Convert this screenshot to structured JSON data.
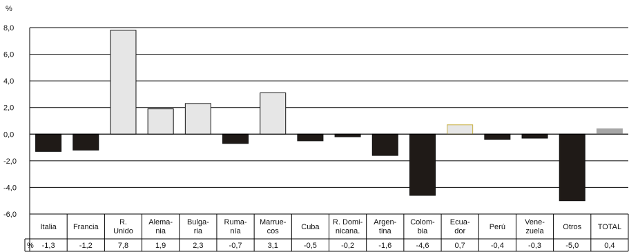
{
  "chart_data": {
    "type": "bar",
    "y_unit": "%",
    "ylim": [
      -6,
      8
    ],
    "yticks": [
      "8,0",
      "6,0",
      "4,0",
      "2,0",
      "0,0",
      "-2,0",
      "-4,0",
      "-6,0"
    ],
    "grid": true,
    "legend": "none",
    "categories": [
      [
        "Italia"
      ],
      [
        "Francia"
      ],
      [
        "R.",
        "Unido"
      ],
      [
        "Alema-",
        "nia"
      ],
      [
        "Bulga-",
        "ria"
      ],
      [
        "Ruma-",
        "nía"
      ],
      [
        "Marrue-",
        "cos"
      ],
      [
        "Cuba"
      ],
      [
        "R. Domi-",
        "nicana."
      ],
      [
        "Argen-",
        "tina"
      ],
      [
        "Colom-",
        "bia"
      ],
      [
        "Ecua-",
        "dor"
      ],
      [
        "Perú"
      ],
      [
        "Vene-",
        "zuela"
      ],
      [
        "Otros"
      ],
      [
        "TOTAL"
      ]
    ],
    "values": [
      -1.3,
      -1.2,
      7.8,
      1.9,
      2.3,
      -0.7,
      3.1,
      -0.5,
      -0.2,
      -1.6,
      -4.6,
      0.7,
      -0.4,
      -0.3,
      -5.0,
      0.4
    ],
    "table_row_label": "%",
    "value_labels": [
      "-1,3",
      "-1,2",
      "7,8",
      "1,9",
      "2,3",
      "-0,7",
      "3,1",
      "-0,5",
      "-0,2",
      "-1,6",
      "-4,6",
      "0,7",
      "-0,4",
      "-0,3",
      "-5,0",
      "0,4"
    ],
    "colors": {
      "positive_fill": "#e6e6e6",
      "negative_fill": "#1f1a17",
      "total_fill": "#a6a6a6",
      "bar_stroke": "#111111",
      "grid": "#000000",
      "ecuador_outline": "#c7b040"
    }
  }
}
